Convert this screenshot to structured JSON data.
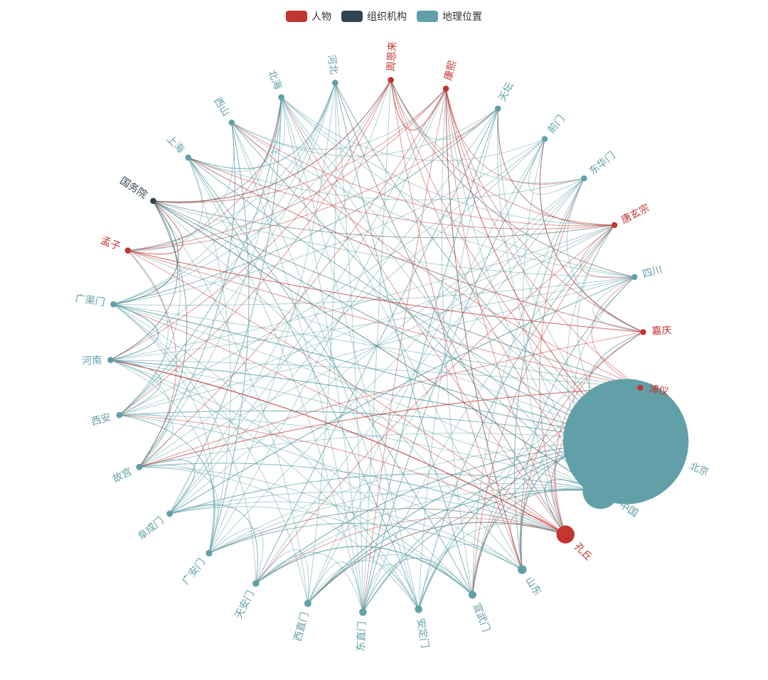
{
  "legend": [
    {
      "name": "人物",
      "color": "#c23531"
    },
    {
      "name": "组织机构",
      "color": "#2f4554"
    },
    {
      "name": "地理位置",
      "color": "#61a0a8"
    }
  ],
  "nodes": [
    {
      "name": "北京",
      "category": 2,
      "value": 90
    },
    {
      "name": "中国",
      "category": 2,
      "value": 45
    },
    {
      "name": "孔丘",
      "category": 0,
      "value": 29
    },
    {
      "name": "山东",
      "category": 2,
      "value": 15
    },
    {
      "name": "宣武门",
      "category": 2,
      "value": 12
    },
    {
      "name": "安定门",
      "category": 2,
      "value": 11
    },
    {
      "name": "东直门",
      "category": 2,
      "value": 11
    },
    {
      "name": "西直门",
      "category": 2,
      "value": 10
    },
    {
      "name": "天安门",
      "category": 2,
      "value": 8
    },
    {
      "name": "广安门",
      "category": 2,
      "value": 8
    },
    {
      "name": "阜成门",
      "category": 2,
      "value": 7
    },
    {
      "name": "故宫",
      "category": 2,
      "value": 7
    },
    {
      "name": "西安",
      "category": 2,
      "value": 6
    },
    {
      "name": "河南",
      "category": 2,
      "value": 6
    },
    {
      "name": "广渠门",
      "category": 2,
      "value": 6
    },
    {
      "name": "孟子",
      "category": 0,
      "value": 5
    },
    {
      "name": "国务院",
      "category": 1,
      "value": 5
    },
    {
      "name": "上海",
      "category": 2,
      "value": 5
    },
    {
      "name": "西山",
      "category": 2,
      "value": 5
    },
    {
      "name": "北海",
      "category": 2,
      "value": 5
    },
    {
      "name": "河北",
      "category": 2,
      "value": 5
    },
    {
      "name": "周恩来",
      "category": 0,
      "value": 5
    },
    {
      "name": "康熙",
      "category": 0,
      "value": 5
    },
    {
      "name": "天坛",
      "category": 2,
      "value": 5
    },
    {
      "name": "前门",
      "category": 2,
      "value": 4
    },
    {
      "name": "东华门",
      "category": 2,
      "value": 4
    },
    {
      "name": "唐玄宗",
      "category": 0,
      "value": 4
    },
    {
      "name": "四川",
      "category": 2,
      "value": 4
    },
    {
      "name": "嘉庆",
      "category": 0,
      "value": 4
    },
    {
      "name": "溥仪",
      "category": 0,
      "value": 4
    }
  ]
}
